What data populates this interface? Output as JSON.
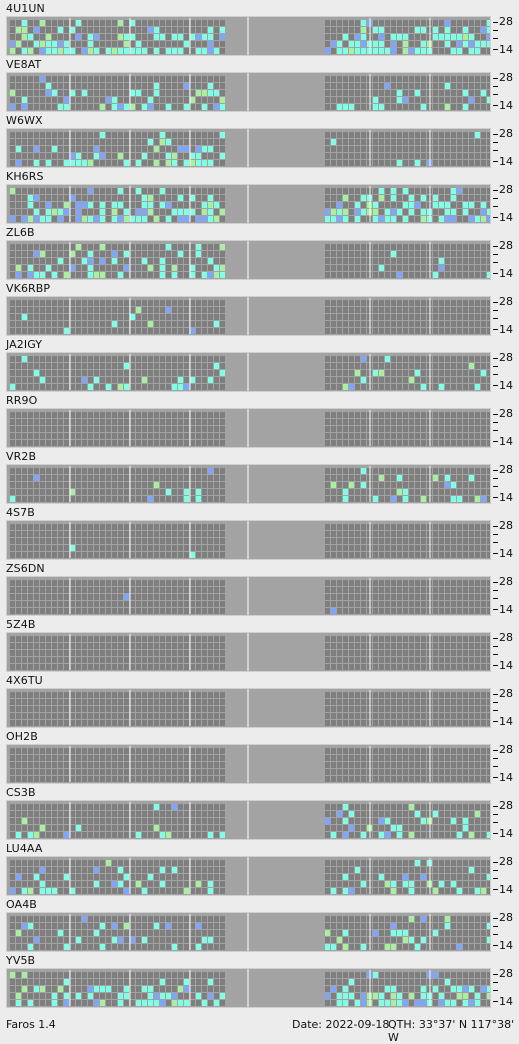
{
  "app": {
    "name": "Faros 1.4"
  },
  "status": {
    "date_label": "Date:",
    "date": "2022-09-18",
    "qth_label": "QTH:",
    "qth": "33°37' N  117°38' W"
  },
  "axis": {
    "top_label": "28",
    "bottom_label": "14"
  },
  "colors": {
    "panel": "#a3a3a3",
    "cell_off": "#7f7f7f",
    "cyan": "#7fffe6",
    "blue": "#7fa6ff",
    "green": "#a8f0a0",
    "grey": "#9a9a9a"
  },
  "stations": [
    {
      "call": "4U1UN",
      "left_levels": 0.55,
      "right_levels": 0.7
    },
    {
      "call": "VE8AT",
      "left_levels": 0.3,
      "right_levels": 0.2
    },
    {
      "call": "W6WX",
      "left_levels": 0.3,
      "right_levels": 0.08
    },
    {
      "call": "KH6RS",
      "left_levels": 0.6,
      "right_levels": 0.6
    },
    {
      "call": "ZL6B",
      "left_levels": 0.4,
      "right_levels": 0.1
    },
    {
      "call": "VK6RBP",
      "left_levels": 0.05,
      "right_levels": 0.03
    },
    {
      "call": "JA2IGY",
      "left_levels": 0.2,
      "right_levels": 0.15
    },
    {
      "call": "RR9O",
      "left_levels": 0.0,
      "right_levels": 0.0
    },
    {
      "call": "VR2B",
      "left_levels": 0.15,
      "right_levels": 0.12
    },
    {
      "call": "4S7B",
      "left_levels": 0.02,
      "right_levels": 0.0
    },
    {
      "call": "ZS6DN",
      "left_levels": 0.02,
      "right_levels": 0.02
    },
    {
      "call": "5Z4B",
      "left_levels": 0.0,
      "right_levels": 0.0
    },
    {
      "call": "4X6TU",
      "left_levels": 0.0,
      "right_levels": 0.0
    },
    {
      "call": "OH2B",
      "left_levels": 0.0,
      "right_levels": 0.0
    },
    {
      "call": "CS3B",
      "left_levels": 0.12,
      "right_levels": 0.35
    },
    {
      "call": "LU4AA",
      "left_levels": 0.25,
      "right_levels": 0.35
    },
    {
      "call": "OA4B",
      "left_levels": 0.25,
      "right_levels": 0.3
    },
    {
      "call": "YV5B",
      "left_levels": 0.4,
      "right_levels": 0.55
    }
  ]
}
